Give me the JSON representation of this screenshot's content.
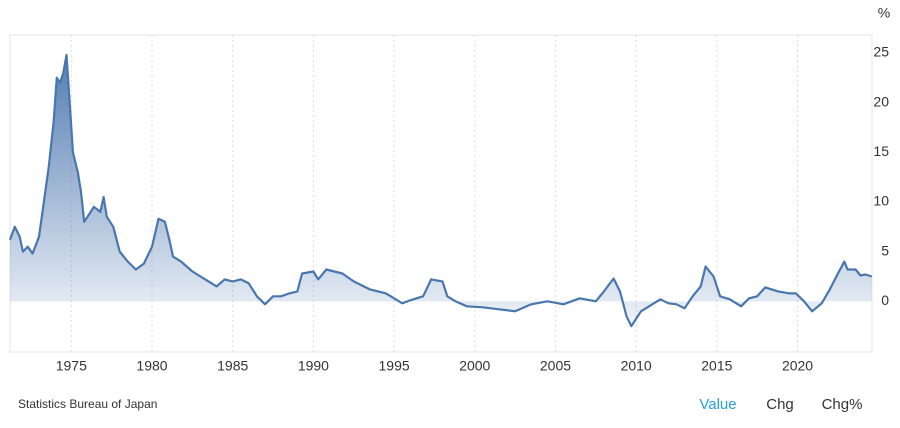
{
  "chart_data": {
    "type": "area",
    "y_unit": "%",
    "source": "Statistics Bureau of Japan",
    "buttons": [
      "Value",
      "Chg",
      "Chg%"
    ],
    "color": "#4a76ae",
    "grid": true,
    "xlim": [
      1971.2,
      2024.8
    ],
    "xticks": [
      1975,
      1980,
      1985,
      1990,
      1995,
      2000,
      2005,
      2010,
      2015,
      2020
    ],
    "ylim": [
      -5,
      27
    ],
    "yticks": [
      0,
      5,
      10,
      15,
      20,
      25
    ],
    "x": [
      1971.2,
      1971.5,
      1971.8,
      1972.0,
      1972.3,
      1972.6,
      1973.0,
      1973.3,
      1973.6,
      1973.9,
      1974.1,
      1974.3,
      1974.5,
      1974.7,
      1974.9,
      1975.1,
      1975.4,
      1975.6,
      1975.8,
      1976.0,
      1976.4,
      1976.8,
      1977.0,
      1977.2,
      1977.6,
      1978.0,
      1978.5,
      1979.0,
      1979.5,
      1980.0,
      1980.4,
      1980.8,
      1981.1,
      1981.3,
      1981.8,
      1982.5,
      1983.5,
      1984.0,
      1984.5,
      1985.0,
      1985.5,
      1986.0,
      1986.5,
      1987.0,
      1987.5,
      1988.0,
      1988.5,
      1989.0,
      1989.3,
      1990.0,
      1990.3,
      1990.8,
      1991.3,
      1991.8,
      1992.5,
      1993.5,
      1994.5,
      1995.5,
      1996.0,
      1996.8,
      1997.3,
      1998.0,
      1998.3,
      1998.8,
      1999.5,
      2000.5,
      2001.5,
      2002.5,
      2003.5,
      2004.5,
      2005.5,
      2006.5,
      2007.5,
      2008.0,
      2008.6,
      2009.0,
      2009.4,
      2009.7,
      2010.3,
      2010.8,
      2011.5,
      2012.0,
      2012.5,
      2013.0,
      2013.5,
      2014.0,
      2014.3,
      2014.8,
      2015.2,
      2015.8,
      2016.5,
      2017.0,
      2017.5,
      2018.0,
      2018.8,
      2019.5,
      2019.9,
      2020.4,
      2020.9,
      2021.5,
      2022.0,
      2022.5,
      2022.9,
      2023.1,
      2023.6,
      2023.9,
      2024.2,
      2024.6
    ],
    "values": [
      6.2,
      7.5,
      6.5,
      5.0,
      5.5,
      4.8,
      6.5,
      10,
      13.5,
      18,
      22.5,
      22.0,
      23,
      24.8,
      20,
      15,
      13,
      11,
      8,
      8.5,
      9.5,
      9.0,
      10.5,
      8.5,
      7.5,
      5.0,
      4.0,
      3.2,
      3.8,
      5.5,
      8.3,
      8.0,
      6.0,
      4.5,
      4.0,
      3.0,
      2.0,
      1.5,
      2.2,
      2.0,
      2.2,
      1.8,
      0.5,
      -0.3,
      0.5,
      0.5,
      0.8,
      1.0,
      2.8,
      3.0,
      2.2,
      3.2,
      3.0,
      2.8,
      2.0,
      1.2,
      0.8,
      -0.2,
      0.1,
      0.5,
      2.2,
      2.0,
      0.5,
      0.0,
      -0.5,
      -0.6,
      -0.8,
      -1.0,
      -0.3,
      0.0,
      -0.3,
      0.3,
      0.0,
      1.0,
      2.3,
      1.0,
      -1.5,
      -2.5,
      -1.0,
      -0.5,
      0.2,
      -0.2,
      -0.3,
      -0.7,
      0.5,
      1.5,
      3.5,
      2.5,
      0.5,
      0.2,
      -0.5,
      0.3,
      0.5,
      1.4,
      1.0,
      0.8,
      0.8,
      0.0,
      -1.0,
      -0.2,
      1.2,
      2.8,
      4.0,
      3.2,
      3.2,
      2.6,
      2.7,
      2.5
    ]
  }
}
